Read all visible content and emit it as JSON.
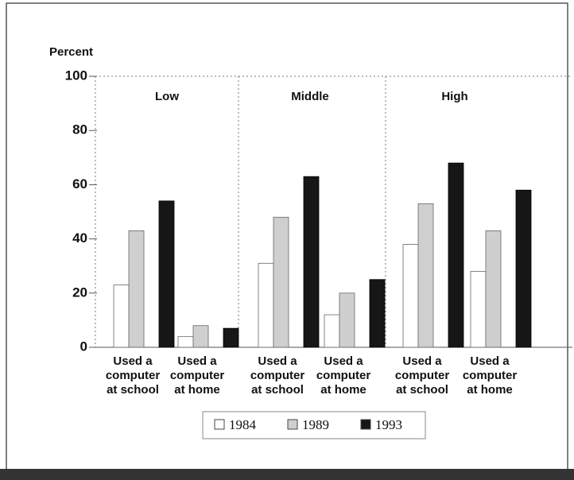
{
  "chart_data": {
    "type": "bar",
    "ylabel": "Percent",
    "panels": [
      "Low",
      "Middle",
      "High"
    ],
    "categories": [
      [
        "Used a",
        "computer",
        "at school"
      ],
      [
        "Used a",
        "computer",
        "at home"
      ],
      [
        "Used a",
        "computer",
        "at school"
      ],
      [
        "Used a",
        "computer",
        "at home"
      ],
      [
        "Used a",
        "computer",
        "at school"
      ],
      [
        "Used a",
        "computer",
        "at home"
      ]
    ],
    "series": [
      {
        "name": "1984",
        "color": "#ffffff",
        "values": [
          23,
          4,
          31,
          12,
          38,
          28
        ]
      },
      {
        "name": "1989",
        "color": "#cfcfcf",
        "values": [
          43,
          8,
          48,
          20,
          53,
          43
        ]
      },
      {
        "name": "1993",
        "color": "#161616",
        "values": [
          54,
          7,
          63,
          25,
          68,
          58
        ]
      }
    ],
    "ylim": [
      0,
      100
    ],
    "yticks": [
      0,
      20,
      40,
      60,
      80,
      100
    ]
  }
}
